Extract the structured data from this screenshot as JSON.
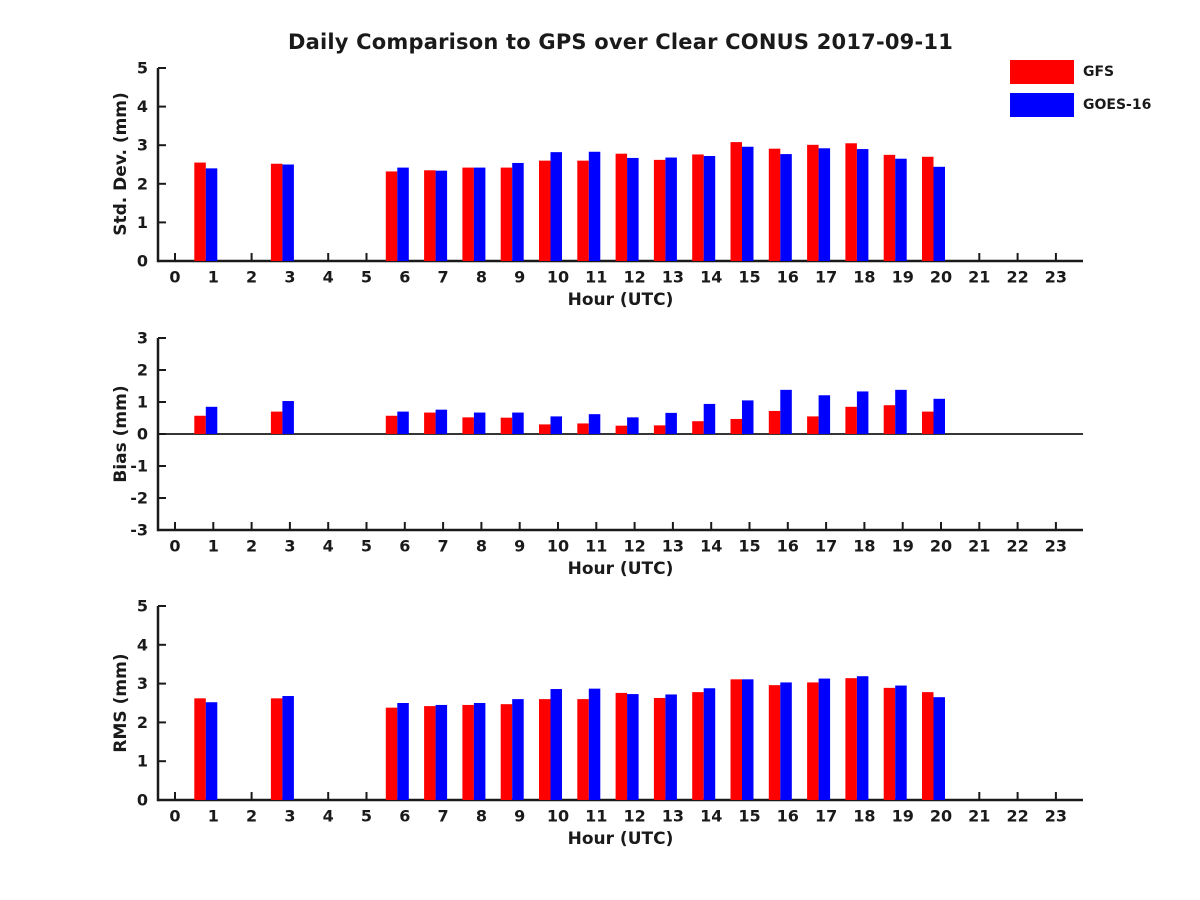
{
  "title": "Daily Comparison to GPS over Clear CONUS 2017-09-11",
  "legend": {
    "position": "top-right",
    "items": [
      {
        "label": "GFS",
        "color": "#ff0000"
      },
      {
        "label": "GOES-16",
        "color": "#0000ff"
      }
    ]
  },
  "colors": {
    "gfs": "#ff0000",
    "goes16": "#0000ff",
    "axis": "#1a1a1a",
    "background": "#ffffff"
  },
  "chart_data": [
    {
      "type": "bar",
      "title": "",
      "ylabel": "Std. Dev. (mm)",
      "xlabel": "Hour (UTC)",
      "ylim": [
        0,
        5
      ],
      "yticks": [
        0,
        1,
        2,
        3,
        4,
        5
      ],
      "xlim": [
        -0.45,
        23.7
      ],
      "xticks": [
        0,
        1,
        2,
        3,
        4,
        5,
        6,
        7,
        8,
        9,
        10,
        11,
        12,
        13,
        14,
        15,
        16,
        17,
        18,
        19,
        20,
        21,
        22,
        23
      ],
      "grid": false,
      "zero_line": false,
      "categories": [
        1,
        3,
        6,
        7,
        8,
        9,
        10,
        11,
        12,
        13,
        14,
        15,
        16,
        17,
        18,
        19,
        20
      ],
      "series": [
        {
          "name": "GFS",
          "color": "#ff0000",
          "values": [
            2.55,
            2.52,
            2.32,
            2.35,
            2.42,
            2.42,
            2.6,
            2.6,
            2.78,
            2.62,
            2.76,
            3.08,
            2.91,
            3.01,
            3.05,
            2.75,
            2.7
          ]
        },
        {
          "name": "GOES-16",
          "color": "#0000ff",
          "values": [
            2.4,
            2.5,
            2.42,
            2.34,
            2.42,
            2.54,
            2.82,
            2.83,
            2.67,
            2.68,
            2.72,
            2.96,
            2.77,
            2.92,
            2.9,
            2.65,
            2.44
          ]
        }
      ]
    },
    {
      "type": "bar",
      "title": "",
      "ylabel": "Bias (mm)",
      "xlabel": "Hour (UTC)",
      "ylim": [
        -3,
        3
      ],
      "yticks": [
        3,
        2,
        1,
        0,
        -1,
        -2,
        -3
      ],
      "xlim": [
        -0.45,
        23.7
      ],
      "xticks": [
        0,
        1,
        2,
        3,
        4,
        5,
        6,
        7,
        8,
        9,
        10,
        11,
        12,
        13,
        14,
        15,
        16,
        17,
        18,
        19,
        20,
        21,
        22,
        23
      ],
      "grid": false,
      "zero_line": true,
      "categories": [
        1,
        3,
        6,
        7,
        8,
        9,
        10,
        11,
        12,
        13,
        14,
        15,
        16,
        17,
        18,
        19,
        20
      ],
      "series": [
        {
          "name": "GFS",
          "color": "#ff0000",
          "values": [
            0.57,
            0.7,
            0.57,
            0.67,
            0.52,
            0.51,
            0.3,
            0.33,
            0.26,
            0.27,
            0.4,
            0.47,
            0.72,
            0.55,
            0.85,
            0.9,
            0.7
          ]
        },
        {
          "name": "GOES-16",
          "color": "#0000ff",
          "values": [
            0.85,
            1.03,
            0.7,
            0.76,
            0.67,
            0.67,
            0.55,
            0.62,
            0.52,
            0.66,
            0.94,
            1.05,
            1.38,
            1.21,
            1.33,
            1.38,
            1.1
          ]
        }
      ]
    },
    {
      "type": "bar",
      "title": "",
      "ylabel": "RMS (mm)",
      "xlabel": "Hour (UTC)",
      "ylim": [
        0,
        5
      ],
      "yticks": [
        0,
        1,
        2,
        3,
        4,
        5
      ],
      "xlim": [
        -0.45,
        23.7
      ],
      "xticks": [
        0,
        1,
        2,
        3,
        4,
        5,
        6,
        7,
        8,
        9,
        10,
        11,
        12,
        13,
        14,
        15,
        16,
        17,
        18,
        19,
        20,
        21,
        22,
        23
      ],
      "grid": false,
      "zero_line": false,
      "categories": [
        1,
        3,
        6,
        7,
        8,
        9,
        10,
        11,
        12,
        13,
        14,
        15,
        16,
        17,
        18,
        19,
        20
      ],
      "series": [
        {
          "name": "GFS",
          "color": "#ff0000",
          "values": [
            2.62,
            2.62,
            2.38,
            2.42,
            2.45,
            2.47,
            2.6,
            2.6,
            2.76,
            2.63,
            2.78,
            3.11,
            2.96,
            3.03,
            3.14,
            2.89,
            2.78
          ]
        },
        {
          "name": "GOES-16",
          "color": "#0000ff",
          "values": [
            2.52,
            2.68,
            2.5,
            2.45,
            2.5,
            2.6,
            2.86,
            2.87,
            2.73,
            2.72,
            2.88,
            3.11,
            3.03,
            3.13,
            3.19,
            2.95,
            2.65
          ]
        }
      ]
    }
  ]
}
